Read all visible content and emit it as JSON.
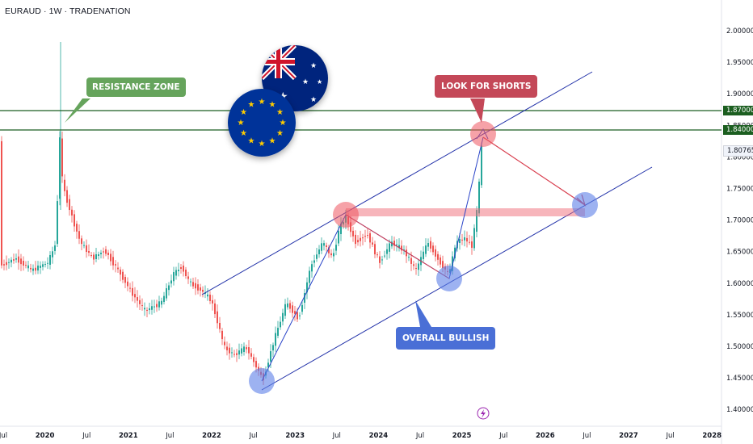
{
  "header": {
    "title": "EURAUD · 1W · TRADENATION"
  },
  "price_axis": {
    "ticks": [
      "2.00000",
      "1.95000",
      "1.90000",
      "1.85000",
      "1.80000",
      "1.75000",
      "1.70000",
      "1.65000",
      "1.60000",
      "1.55000",
      "1.50000",
      "1.45000",
      "1.40000"
    ],
    "tags": [
      {
        "label": "1.87000",
        "style": "line"
      },
      {
        "label": "1.84000",
        "style": "line"
      },
      {
        "label": "1.80765",
        "style": "current"
      }
    ]
  },
  "time_axis": {
    "ticks": [
      "Jul",
      "2020",
      "Jul",
      "2021",
      "Jul",
      "2022",
      "Jul",
      "2023",
      "Jul",
      "2024",
      "Jul",
      "2025",
      "Jul",
      "2026",
      "Jul",
      "2027",
      "Jul",
      "2028"
    ]
  },
  "annotations": {
    "resistance": "RESISTANCE ZONE",
    "shorts": "LOOK FOR SHORTS",
    "bullish": "OVERALL BULLISH"
  },
  "colors": {
    "green_tag": "#66a45c",
    "red_tag": "#c44858",
    "blue_tag": "#4a6fd6",
    "hline": "#1b5e20",
    "channel": "#2030a8",
    "candle_up": "#26a69a",
    "candle_down": "#ef5350"
  },
  "icons": {
    "eu_flag": "eu-flag-icon",
    "au_flag": "australia-flag-icon",
    "events": "lightning-icon"
  }
}
